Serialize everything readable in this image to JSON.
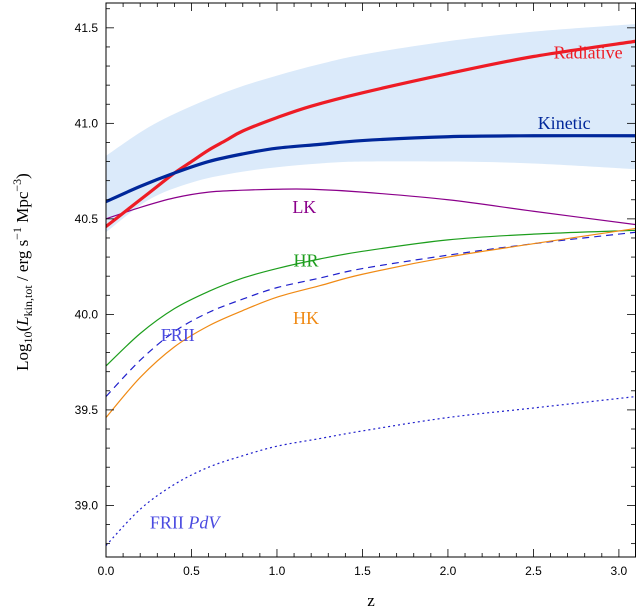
{
  "chart_data": {
    "type": "line",
    "title": "",
    "xlabel": "z",
    "ylabel_parts": {
      "prefix": "Log",
      "log_sub": "10",
      "open": "(",
      "var": "L",
      "var_sub": "kin,tot",
      "units_a": " / erg s",
      "exp_a": "−1",
      "units_b": " Mpc",
      "exp_b": "−3",
      "close": ")"
    },
    "xlim": [
      0,
      3.1
    ],
    "ylim": [
      38.73,
      41.63
    ],
    "xticks": [
      {
        "value": 0.0,
        "label": "0.0"
      },
      {
        "value": 0.5,
        "label": "0.5"
      },
      {
        "value": 1.0,
        "label": "1.0"
      },
      {
        "value": 1.5,
        "label": "1.5"
      },
      {
        "value": 2.0,
        "label": "2.0"
      },
      {
        "value": 2.5,
        "label": "2.5"
      },
      {
        "value": 3.0,
        "label": "3.0"
      }
    ],
    "yticks": [
      {
        "value": 39.0,
        "label": "39.0"
      },
      {
        "value": 39.5,
        "label": "39.5"
      },
      {
        "value": 40.0,
        "label": "40.0"
      },
      {
        "value": 40.5,
        "label": "40.5"
      },
      {
        "value": 41.0,
        "label": "41.0"
      },
      {
        "value": 41.5,
        "label": "41.5"
      }
    ],
    "grid": false,
    "band": {
      "color": "#dbeafa",
      "x": [
        0.0,
        0.25,
        0.5,
        0.75,
        1.0,
        1.25,
        1.5,
        2.0,
        2.5,
        3.1
      ],
      "upper": [
        40.83,
        40.98,
        41.09,
        41.18,
        41.25,
        41.31,
        41.36,
        41.43,
        41.48,
        41.52
      ],
      "lower": [
        40.43,
        40.6,
        40.69,
        40.74,
        40.77,
        40.79,
        40.8,
        40.8,
        40.79,
        40.76
      ]
    },
    "series": [
      {
        "name": "Radiative",
        "color": "#ee1c25",
        "width": 3.2,
        "dash": "",
        "x": [
          0.0,
          0.1,
          0.2,
          0.3,
          0.4,
          0.5,
          0.6,
          0.7,
          0.8,
          1.0,
          1.2,
          1.5,
          2.0,
          2.5,
          3.1
        ],
        "y": [
          40.46,
          40.53,
          40.6,
          40.67,
          40.74,
          40.8,
          40.86,
          40.91,
          40.96,
          41.03,
          41.09,
          41.16,
          41.26,
          41.35,
          41.43
        ],
        "label": {
          "text": "Radiative",
          "x": 2.82,
          "y": 41.34,
          "color": "#ee1c25"
        }
      },
      {
        "name": "Kinetic",
        "color": "#00279a",
        "width": 3.2,
        "dash": "",
        "x": [
          0.0,
          0.2,
          0.4,
          0.6,
          0.8,
          1.0,
          1.25,
          1.5,
          2.0,
          2.5,
          3.1
        ],
        "y": [
          40.59,
          40.67,
          40.74,
          40.8,
          40.84,
          40.87,
          40.89,
          40.91,
          40.93,
          40.935,
          40.935
        ],
        "label": {
          "text": "Kinetic",
          "x": 2.68,
          "y": 40.97,
          "color": "#00279a"
        }
      },
      {
        "name": "LK",
        "color": "#8b008b",
        "width": 1.2,
        "dash": "",
        "x": [
          0.0,
          0.2,
          0.4,
          0.6,
          0.8,
          1.0,
          1.2,
          1.5,
          2.0,
          2.5,
          3.1
        ],
        "y": [
          40.5,
          40.56,
          40.61,
          40.64,
          40.65,
          40.655,
          40.655,
          40.64,
          40.6,
          40.54,
          40.47
        ],
        "label": {
          "text": "LK",
          "x": 1.16,
          "y": 40.53,
          "color": "#8b008b"
        }
      },
      {
        "name": "HR",
        "color": "#1d9e1d",
        "width": 1.2,
        "dash": "",
        "x": [
          0.0,
          0.2,
          0.4,
          0.6,
          0.8,
          1.0,
          1.25,
          1.5,
          2.0,
          2.5,
          3.1
        ],
        "y": [
          39.73,
          39.9,
          40.03,
          40.12,
          40.19,
          40.24,
          40.29,
          40.33,
          40.39,
          40.42,
          40.44
        ],
        "label": {
          "text": "HR",
          "x": 1.17,
          "y": 40.25,
          "color": "#1d9e1d"
        }
      },
      {
        "name": "FRII",
        "color": "#2020cc",
        "width": 1.2,
        "dash": "7,5",
        "x": [
          0.0,
          0.2,
          0.4,
          0.6,
          0.8,
          1.0,
          1.25,
          1.5,
          2.0,
          2.5,
          3.1
        ],
        "y": [
          39.57,
          39.76,
          39.91,
          40.01,
          40.08,
          40.14,
          40.19,
          40.24,
          40.31,
          40.37,
          40.43
        ],
        "label": {
          "text": "FRII",
          "x": 0.42,
          "y": 39.86,
          "color": "#4a4ae0"
        }
      },
      {
        "name": "HK",
        "color": "#f08a14",
        "width": 1.2,
        "dash": "",
        "x": [
          0.0,
          0.2,
          0.4,
          0.6,
          0.8,
          1.0,
          1.25,
          1.5,
          2.0,
          2.5,
          3.1
        ],
        "y": [
          39.46,
          39.67,
          39.83,
          39.94,
          40.02,
          40.09,
          40.15,
          40.21,
          40.3,
          40.37,
          40.45
        ],
        "label": {
          "text": "HK",
          "x": 1.17,
          "y": 39.95,
          "color": "#f08a14"
        }
      },
      {
        "name": "FRII PdV",
        "color": "#2020cc",
        "width": 1.2,
        "dash": "2,3",
        "x": [
          0.0,
          0.2,
          0.4,
          0.6,
          0.8,
          1.0,
          1.25,
          1.5,
          2.0,
          2.5,
          3.1
        ],
        "y": [
          38.79,
          38.98,
          39.11,
          39.2,
          39.26,
          39.31,
          39.35,
          39.39,
          39.46,
          39.51,
          39.57
        ],
        "label": {
          "text": "FRII",
          "italic_text": "PdV",
          "x": 0.46,
          "y": 38.88,
          "color": "#4a4ae0"
        }
      }
    ]
  }
}
